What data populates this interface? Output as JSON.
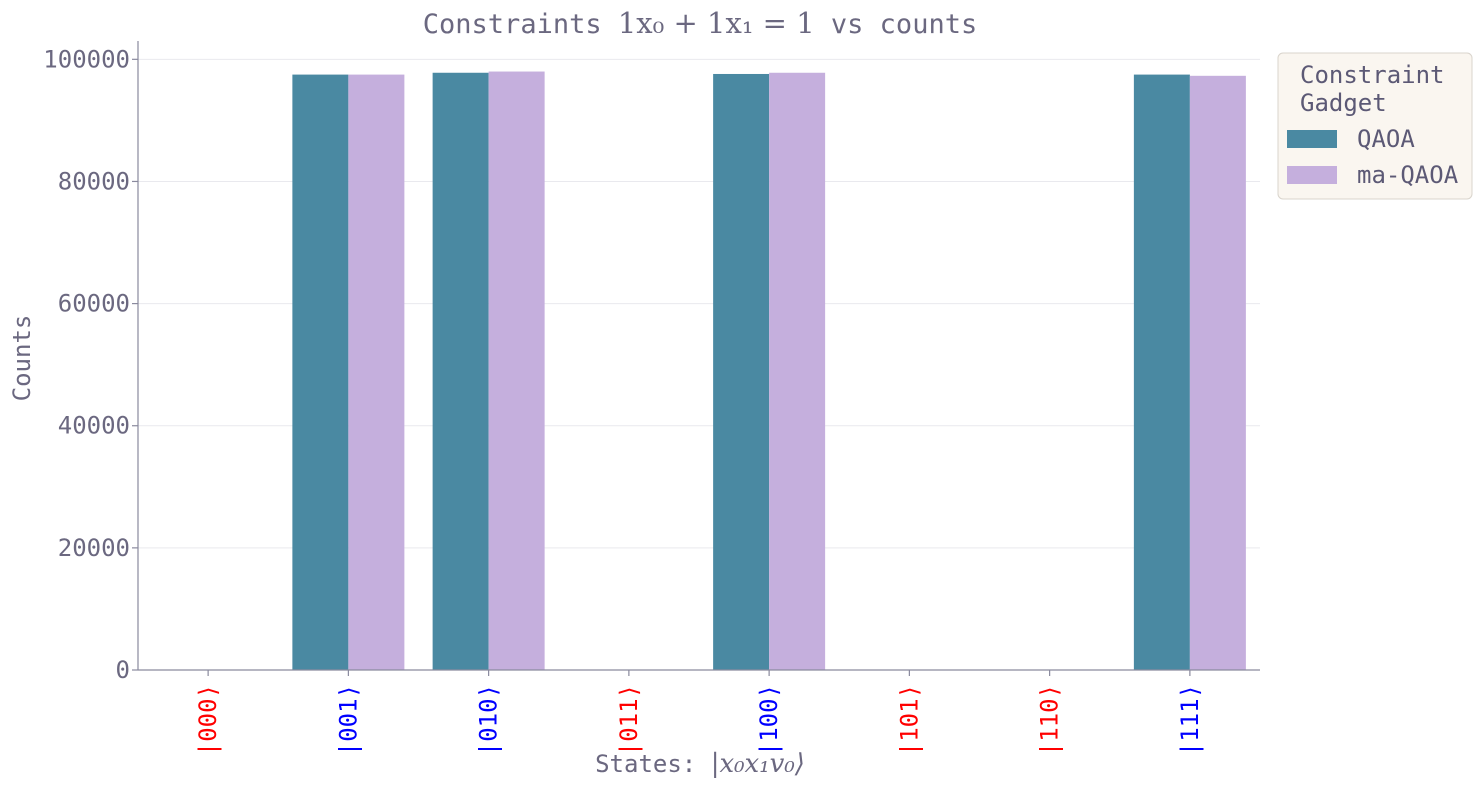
{
  "chart_data": {
    "type": "bar",
    "title": {
      "prefix": "Constraints ",
      "math": "1x₀ + 1x₁ = 1",
      "suffix": " vs counts"
    },
    "xlabel": {
      "prefix": "States: ",
      "math": "|x₀x₁v₀⟩"
    },
    "ylabel": "Counts",
    "ylim": [
      0,
      103000
    ],
    "yticks": [
      0,
      20000,
      40000,
      60000,
      80000,
      100000
    ],
    "grid": "horizontal",
    "categories": [
      "|000⟩",
      "|001⟩",
      "|010⟩",
      "|011⟩",
      "|100⟩",
      "|101⟩",
      "|110⟩",
      "|111⟩"
    ],
    "category_colors": [
      "#ff0000",
      "#0000ff",
      "#0000ff",
      "#ff0000",
      "#0000ff",
      "#ff0000",
      "#ff0000",
      "#0000ff"
    ],
    "series": [
      {
        "name": "QAOA",
        "color": "#4a89a2",
        "values": [
          0,
          97500,
          97800,
          0,
          97600,
          0,
          0,
          97500
        ]
      },
      {
        "name": "ma-QAOA",
        "color": "#c5afdd",
        "values": [
          0,
          97500,
          98000,
          0,
          97800,
          0,
          0,
          97300
        ]
      }
    ],
    "legend": {
      "title": [
        "Constraint",
        "Gadget"
      ],
      "placement": "outside-top-right"
    }
  }
}
